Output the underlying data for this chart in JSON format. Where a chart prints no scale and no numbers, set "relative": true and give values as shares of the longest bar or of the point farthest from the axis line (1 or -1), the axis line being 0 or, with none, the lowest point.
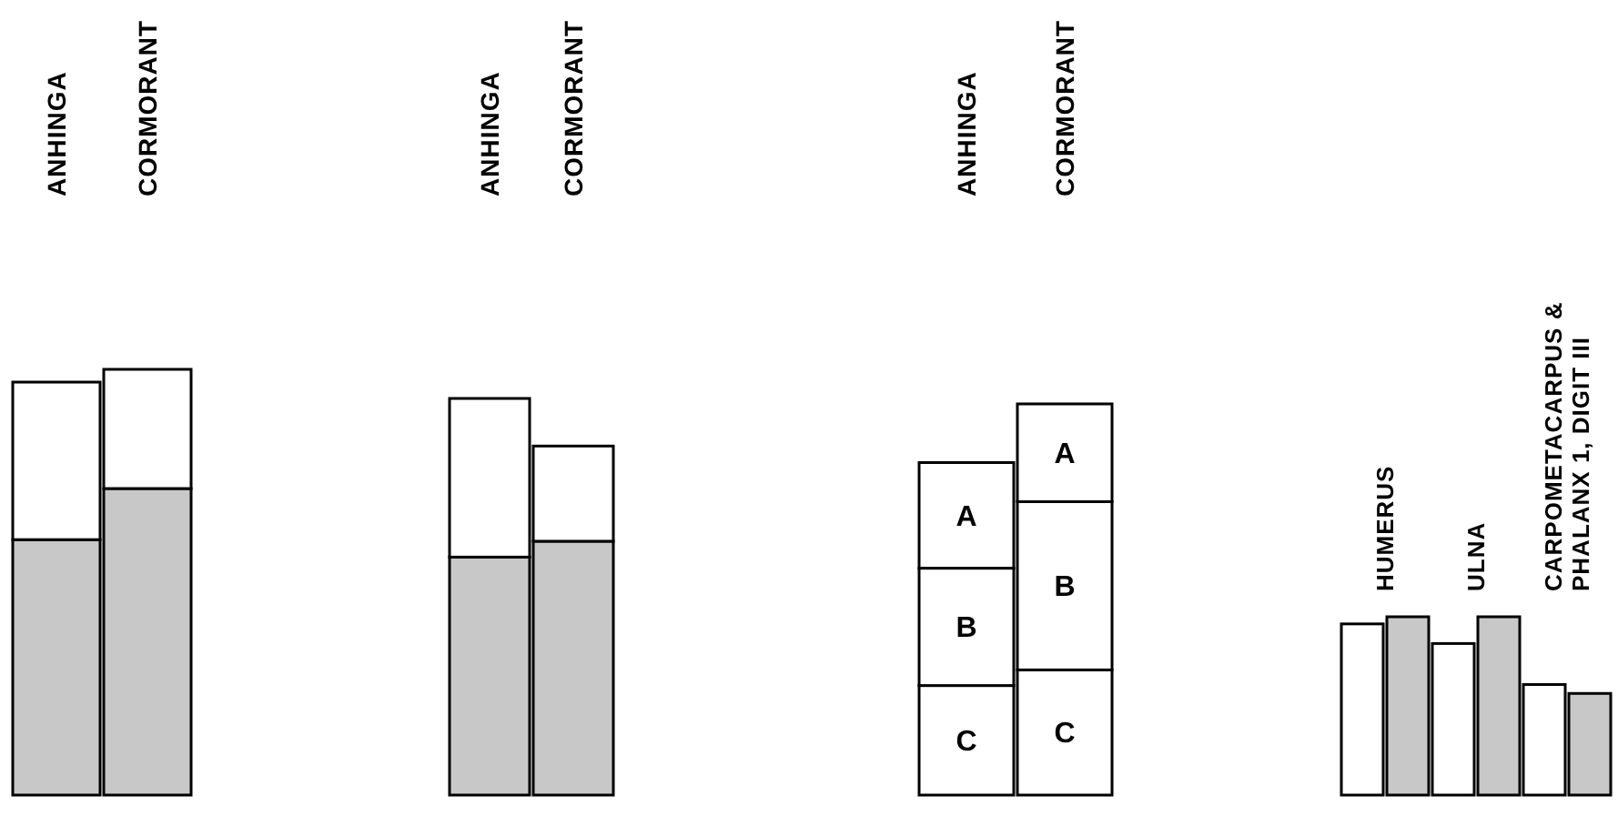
{
  "chart_data": [
    {
      "type": "bar",
      "stacked": true,
      "relative": true,
      "categories": [
        "ANHINGA",
        "CORMORANT"
      ],
      "series": [
        {
          "color": "#c8c8c8",
          "values": [
            0.6,
            0.72
          ]
        },
        {
          "color": "#ffffff",
          "values": [
            0.37,
            0.28
          ]
        }
      ]
    },
    {
      "type": "bar",
      "stacked": true,
      "relative": true,
      "categories": [
        "ANHINGA",
        "CORMORANT"
      ],
      "series": [
        {
          "color": "#c8c8c8",
          "values": [
            0.6,
            0.64
          ]
        },
        {
          "color": "#ffffff",
          "values": [
            0.4,
            0.24
          ]
        }
      ]
    },
    {
      "type": "bar",
      "stacked": true,
      "relative": true,
      "categories": [
        "ANHINGA",
        "CORMORANT"
      ],
      "series": [
        {
          "name": "C",
          "color": "#ffffff",
          "values": [
            0.28,
            0.32
          ]
        },
        {
          "name": "B",
          "color": "#ffffff",
          "values": [
            0.3,
            0.43
          ]
        },
        {
          "name": "A",
          "color": "#ffffff",
          "values": [
            0.27,
            0.25
          ]
        }
      ]
    },
    {
      "type": "bar",
      "relative": true,
      "categories": [
        "HUMERUS",
        "ULNA",
        "CARPOMETACARPUS & PHALANX 1, DIGIT III"
      ],
      "series": [
        {
          "color": "#ffffff",
          "values": [
            0.96,
            0.85,
            0.62
          ]
        },
        {
          "color": "#c8c8c8",
          "values": [
            1,
            1,
            0.57
          ]
        }
      ]
    }
  ]
}
